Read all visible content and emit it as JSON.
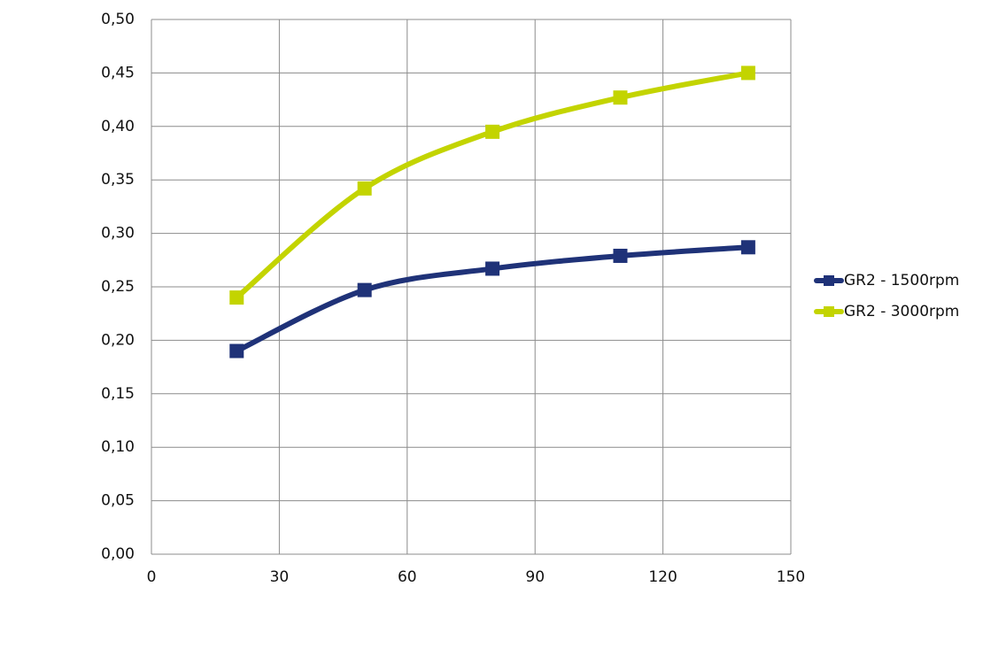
{
  "chart_data": {
    "type": "line",
    "x": [
      20,
      50,
      80,
      110,
      140
    ],
    "series": [
      {
        "name": "GR2 - 1500rpm",
        "color": "#1f3278",
        "values": [
          0.19,
          0.247,
          0.267,
          0.279,
          0.287
        ]
      },
      {
        "name": "GR2 - 3000rpm",
        "color": "#c3d400",
        "values": [
          0.24,
          0.342,
          0.395,
          0.427,
          0.45
        ]
      }
    ],
    "xlim": [
      0,
      150
    ],
    "xticks": [
      0,
      30,
      60,
      90,
      120,
      150
    ],
    "ylim": [
      0,
      0.5
    ],
    "yticks": [
      {
        "value": 0,
        "label": "0,00"
      },
      {
        "value": 0.05,
        "label": "0,05"
      },
      {
        "value": 0.1,
        "label": "0,10"
      },
      {
        "value": 0.15,
        "label": "0,15"
      },
      {
        "value": 0.2,
        "label": "0,20"
      },
      {
        "value": 0.25,
        "label": "0,25"
      },
      {
        "value": 0.3,
        "label": "0,30"
      },
      {
        "value": 0.35,
        "label": "0,35"
      },
      {
        "value": 0.4,
        "label": "0,40"
      },
      {
        "value": 0.45,
        "label": "0,45"
      },
      {
        "value": 0.5,
        "label": "0,50"
      }
    ],
    "grid": true,
    "legend": "right"
  }
}
